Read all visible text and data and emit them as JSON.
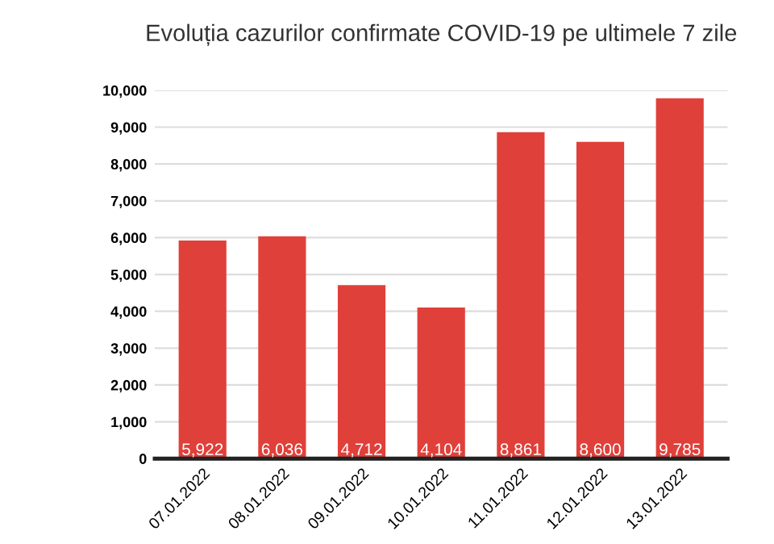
{
  "chart_data": {
    "type": "bar",
    "title": "Evoluția cazurilor confirmate COVID-19 pe ultimele 7 zile",
    "categories": [
      "07.01.2022",
      "08.01.2022",
      "09.01.2022",
      "10.01.2022",
      "11.01.2022",
      "12.01.2022",
      "13.01.2022"
    ],
    "values": [
      5922,
      6036,
      4712,
      4104,
      8861,
      8600,
      9785
    ],
    "color": "#e0403a",
    "value_labels": [
      "5,922",
      "6,036",
      "4,712",
      "4,104",
      "8,861",
      "8,600",
      "9,785"
    ],
    "ylim": [
      0,
      10000
    ],
    "yticks": [
      {
        "value": 0,
        "label": "0"
      },
      {
        "value": 1000,
        "label": "1,000"
      },
      {
        "value": 2000,
        "label": "2,000"
      },
      {
        "value": 3000,
        "label": "3,000"
      },
      {
        "value": 4000,
        "label": "4,000"
      },
      {
        "value": 5000,
        "label": "5,000"
      },
      {
        "value": 6000,
        "label": "6,000"
      },
      {
        "value": 7000,
        "label": "7,000"
      },
      {
        "value": 8000,
        "label": "8,000"
      },
      {
        "value": 9000,
        "label": "9,000"
      },
      {
        "value": 10000,
        "label": "10,000"
      }
    ],
    "grid": "y"
  }
}
